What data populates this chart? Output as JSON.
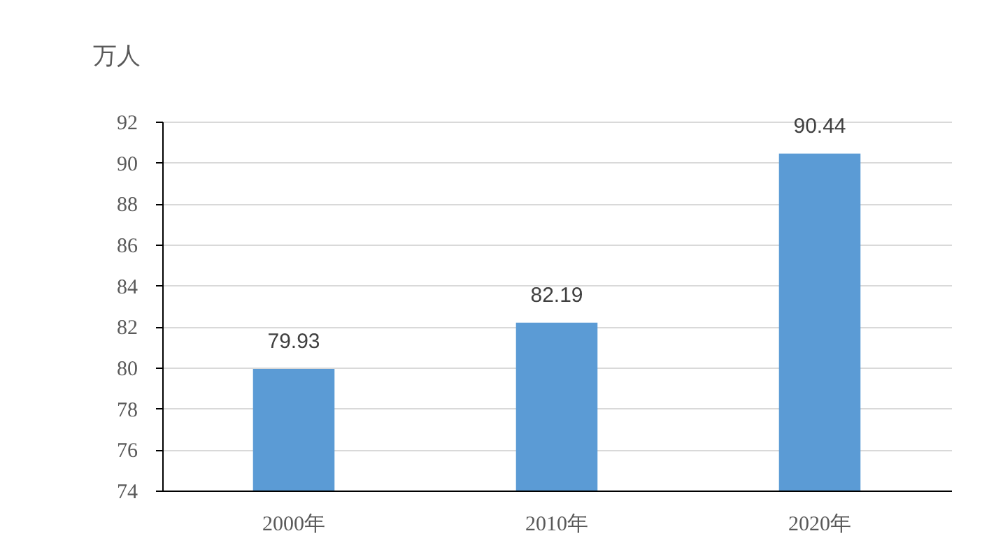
{
  "chart_data": {
    "type": "bar",
    "ylabel": "万人",
    "categories": [
      "2000年",
      "2010年",
      "2020年"
    ],
    "values": [
      79.93,
      82.19,
      90.44
    ],
    "color": "#5b9bd5",
    "ylim": [
      74,
      92
    ],
    "yticks": [
      74,
      76,
      78,
      80,
      82,
      84,
      86,
      88,
      90,
      92
    ],
    "grid": "y",
    "data_labels": true
  }
}
